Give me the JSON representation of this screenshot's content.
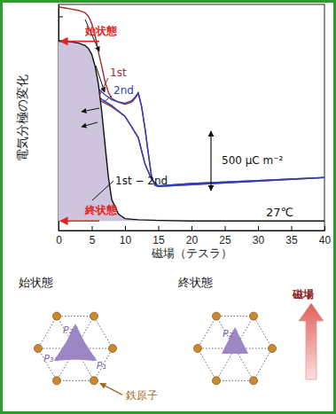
{
  "chart_data": {
    "type": "line",
    "x_label": "磁場（テスラ）",
    "y_label": "電気分極の変化",
    "xlim": [
      0,
      40
    ],
    "xticks": [
      0,
      5,
      10,
      15,
      20,
      25,
      30,
      35,
      40
    ],
    "ylim": [
      0,
      1900
    ],
    "yticks": [
      0,
      200,
      400,
      600,
      800,
      1000,
      1200,
      1400,
      1600,
      1800
    ],
    "tick_labels": "x",
    "grid": false,
    "series": [
      {
        "name": "1st",
        "color": "#a52a2a",
        "type": "line",
        "x": [
          0,
          1,
          2,
          3,
          4,
          4.5,
          5,
          5.5,
          6,
          6.5,
          7,
          7.5,
          8,
          9,
          10,
          11,
          11.5,
          12,
          12.5,
          13,
          13.5,
          14,
          14.5,
          15,
          20,
          25,
          30,
          35,
          40,
          40,
          30,
          20,
          15,
          14,
          13,
          12,
          10,
          8,
          6,
          4,
          2,
          0
        ],
        "values": [
          1880,
          1870,
          1860,
          1850,
          1830,
          1800,
          1740,
          1640,
          1500,
          1380,
          1250,
          1160,
          1110,
          1080,
          1060,
          1080,
          1110,
          1150,
          1040,
          860,
          650,
          450,
          380,
          370,
          385,
          400,
          415,
          430,
          445,
          445,
          420,
          395,
          375,
          430,
          560,
          780,
          960,
          1040,
          1100,
          1150,
          1200,
          1240
        ]
      },
      {
        "name": "2nd",
        "color": "#2b3fc4",
        "type": "line",
        "x": [
          0,
          2,
          4,
          6,
          7,
          8,
          9,
          10,
          11,
          11.5,
          12,
          12.5,
          13,
          13.5,
          14,
          14.5,
          15,
          20,
          25,
          30,
          35,
          40,
          40,
          30,
          20,
          15,
          14,
          13,
          12,
          10,
          8,
          6,
          4,
          2,
          0
        ],
        "values": [
          1290,
          1270,
          1240,
          1190,
          1140,
          1100,
          1080,
          1070,
          1090,
          1120,
          1160,
          1040,
          860,
          650,
          450,
          380,
          370,
          385,
          400,
          415,
          430,
          445,
          445,
          420,
          395,
          375,
          430,
          560,
          780,
          960,
          1050,
          1120,
          1180,
          1230,
          1270
        ]
      },
      {
        "name": "1st − 2nd",
        "color": "#111111",
        "type": "area",
        "x": [
          0,
          1,
          2,
          3,
          4,
          4.5,
          5,
          5.5,
          6,
          6.5,
          7,
          7.5,
          8,
          9,
          10,
          12,
          15,
          20,
          25,
          30,
          35,
          40
        ],
        "values": [
          1590,
          1590,
          1585,
          1575,
          1555,
          1530,
          1480,
          1380,
          1230,
          1000,
          720,
          450,
          260,
          140,
          100,
          90,
          85,
          80,
          80,
          80,
          80,
          80
        ]
      }
    ],
    "scale_bar": {
      "value": 500,
      "label": "500 μC m⁻²"
    },
    "annotations": [
      "27℃",
      "始状態",
      "終状態"
    ]
  },
  "diagram": {
    "initial_title": "始状態",
    "final_title": "終状態",
    "initial_arrows": [
      "P₁",
      "P₂",
      "P₃"
    ],
    "final_arrows": [
      "P₂"
    ],
    "atom_label": "鉄原子",
    "field_label": "磁場"
  }
}
